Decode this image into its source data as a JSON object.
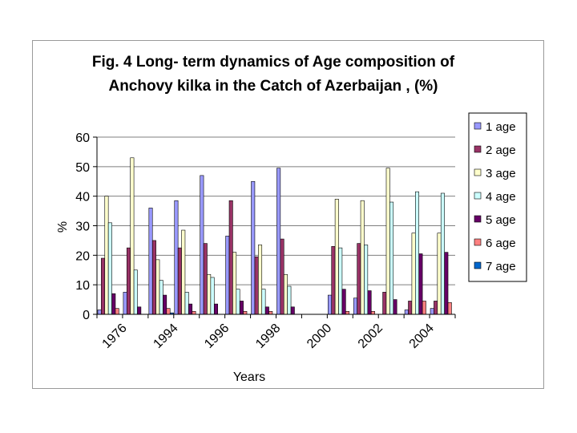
{
  "chart_data": {
    "type": "bar",
    "title": "Fig. 4 Long- term dynamics of Age  composition of",
    "title_line2": "Anchovy kilka in the Catch of Azerbaijan , (%)",
    "xlabel": "Years",
    "ylabel": "%",
    "ylim": [
      0,
      60
    ],
    "yticks": [
      "0",
      "10",
      "20",
      "30",
      "40",
      "50",
      "60"
    ],
    "categories": [
      "",
      "",
      "",
      "",
      "",
      "",
      "",
      "",
      "",
      "",
      "",
      "",
      "",
      ""
    ],
    "category_labels": [
      "1976",
      "1994",
      "1996",
      "1998",
      "2000",
      "2002",
      "2004"
    ],
    "grid": true,
    "legend_position": "right",
    "series": [
      {
        "name": "1 age",
        "color": "#9999ff",
        "values": [
          1.5,
          7.5,
          36,
          38.5,
          47,
          26.5,
          45,
          49.5,
          0,
          6.5,
          5.5,
          0,
          1.5,
          2
        ]
      },
      {
        "name": "2 age",
        "color": "#993366",
        "values": [
          19,
          22.5,
          25,
          22.5,
          24,
          38.5,
          19.5,
          25.5,
          0,
          23,
          24,
          7.5,
          4.5,
          4.5
        ]
      },
      {
        "name": "3 age",
        "color": "#ffffcc",
        "values": [
          40,
          53,
          18.5,
          28.5,
          13.5,
          21,
          23.5,
          13.5,
          0,
          39,
          38.5,
          49.5,
          27.5,
          27.5
        ]
      },
      {
        "name": "4 age",
        "color": "#ccffff",
        "values": [
          31,
          15,
          11.5,
          7.5,
          12.5,
          8.5,
          8.5,
          9.5,
          0,
          22.5,
          23.5,
          38,
          41.5,
          41
        ]
      },
      {
        "name": "5 age",
        "color": "#660066",
        "values": [
          7,
          2.5,
          6.5,
          3.5,
          3.5,
          4.5,
          2.5,
          2.5,
          0,
          8.5,
          8,
          5,
          20.5,
          21
        ]
      },
      {
        "name": "6 age",
        "color": "#ff8080",
        "values": [
          2,
          0,
          2,
          1,
          0,
          1,
          1,
          0,
          0,
          1,
          1,
          0,
          4.5,
          4
        ]
      },
      {
        "name": "7 age",
        "color": "#0066cc",
        "values": [
          0,
          0,
          0.5,
          0,
          0,
          0,
          0,
          0,
          0,
          0,
          0,
          0,
          0,
          0
        ]
      }
    ]
  }
}
